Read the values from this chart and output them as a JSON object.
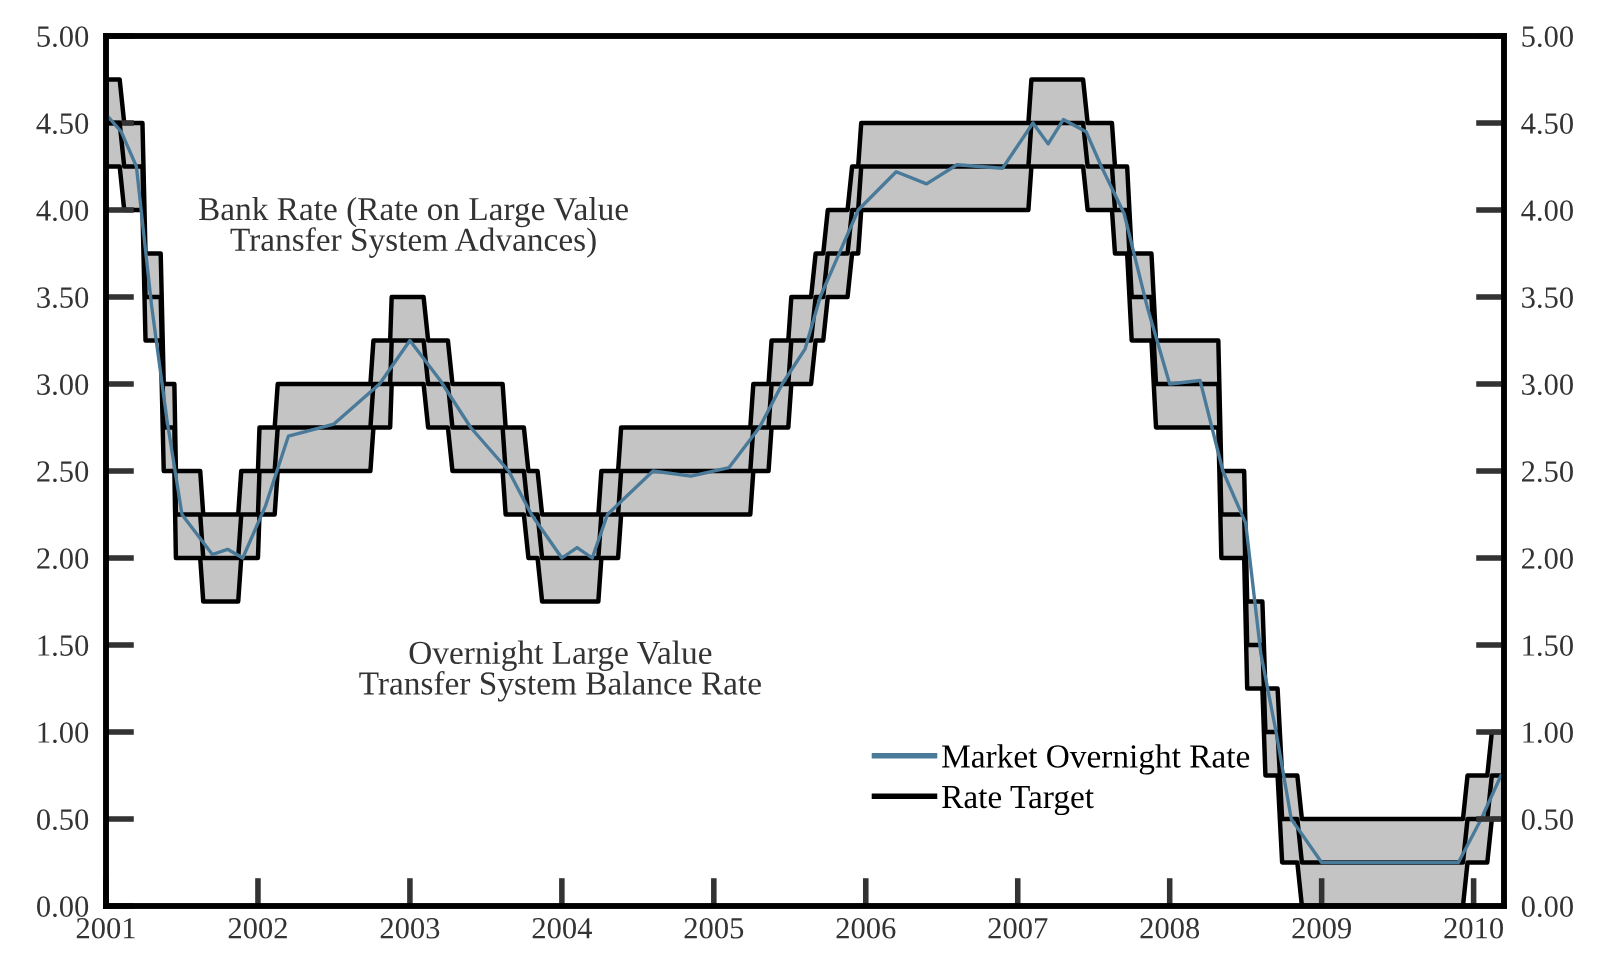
{
  "chart_data": {
    "type": "line",
    "annotations": [
      "Bank Rate (Rate on Large Value\nTransfer System Advances)",
      "Overnight Large Value\nTransfer System Balance Rate"
    ],
    "series": [
      {
        "name": "Market Overnight Rate",
        "color": "#4a7a9a",
        "x": [
          2001.0,
          2001.1,
          2001.2,
          2001.3,
          2001.4,
          2001.5,
          2001.7,
          2001.8,
          2001.9,
          2002.05,
          2002.2,
          2002.5,
          2002.8,
          2003.0,
          2003.2,
          2003.4,
          2003.65,
          2003.8,
          2004.0,
          2004.1,
          2004.2,
          2004.3,
          2004.6,
          2004.85,
          2005.1,
          2005.3,
          2005.45,
          2005.6,
          2005.7,
          2005.8,
          2005.95,
          2006.2,
          2006.4,
          2006.6,
          2006.9,
          2007.1,
          2007.2,
          2007.3,
          2007.45,
          2007.55,
          2007.7,
          2007.85,
          2008.0,
          2008.2,
          2008.35,
          2008.5,
          2008.6,
          2008.7,
          2008.8,
          2009.0,
          2009.9,
          2010.05,
          2010.18
        ],
        "values": [
          4.55,
          4.45,
          4.25,
          3.45,
          2.8,
          2.25,
          2.02,
          2.05,
          2.0,
          2.3,
          2.7,
          2.77,
          3.0,
          3.25,
          3.02,
          2.75,
          2.5,
          2.25,
          2.0,
          2.06,
          2.0,
          2.25,
          2.5,
          2.47,
          2.52,
          2.75,
          3.0,
          3.2,
          3.5,
          3.7,
          4.0,
          4.22,
          4.15,
          4.26,
          4.24,
          4.5,
          4.38,
          4.52,
          4.45,
          4.25,
          3.98,
          3.45,
          3.0,
          3.02,
          2.5,
          2.2,
          1.45,
          1.0,
          0.5,
          0.25,
          0.25,
          0.5,
          0.75
        ]
      },
      {
        "name": "Rate Target",
        "color": "#000000",
        "x": [
          2001.0,
          2001.09,
          2001.12,
          2001.24,
          2001.26,
          2001.36,
          2001.38,
          2001.45,
          2001.46,
          2001.62,
          2001.64,
          2001.87,
          2001.89,
          2002.0,
          2002.01,
          2002.11,
          2002.13,
          2002.74,
          2002.76,
          2002.87,
          2002.88,
          2003.09,
          2003.12,
          2003.25,
          2003.28,
          2003.61,
          2003.63,
          2003.75,
          2003.78,
          2003.84,
          2003.87,
          2004.24,
          2004.26,
          2004.37,
          2004.39,
          2005.24,
          2005.26,
          2005.36,
          2005.38,
          2005.49,
          2005.51,
          2005.64,
          2005.67,
          2005.72,
          2005.75,
          2005.88,
          2005.91,
          2005.95,
          2005.97,
          2007.07,
          2007.09,
          2007.43,
          2007.46,
          2007.62,
          2007.64,
          2007.72,
          2007.75,
          2007.88,
          2007.91,
          2008.32,
          2008.34,
          2008.49,
          2008.51,
          2008.61,
          2008.63,
          2008.71,
          2008.74,
          2008.84,
          2008.87,
          2009.93,
          2009.96,
          2010.09,
          2010.12,
          2010.2
        ],
        "values": [
          4.5,
          4.5,
          4.25,
          4.25,
          3.5,
          3.5,
          2.75,
          2.75,
          2.25,
          2.25,
          2.0,
          2.0,
          2.25,
          2.25,
          2.5,
          2.5,
          2.75,
          2.75,
          3.0,
          3.0,
          3.25,
          3.25,
          3.0,
          3.0,
          2.75,
          2.75,
          2.5,
          2.5,
          2.25,
          2.25,
          2.0,
          2.0,
          2.25,
          2.25,
          2.5,
          2.5,
          2.75,
          2.75,
          3.0,
          3.0,
          3.25,
          3.25,
          3.5,
          3.5,
          3.75,
          3.75,
          4.0,
          4.0,
          4.25,
          4.25,
          4.5,
          4.5,
          4.25,
          4.25,
          4.0,
          4.0,
          3.5,
          3.5,
          3.0,
          3.0,
          2.25,
          2.25,
          1.5,
          1.5,
          1.0,
          1.0,
          0.5,
          0.5,
          0.25,
          0.25,
          0.5,
          0.5,
          0.75,
          0.75
        ],
        "lower": [
          4.25,
          4.25,
          4.0,
          4.0,
          3.25,
          3.25,
          2.5,
          2.5,
          2.0,
          2.0,
          1.75,
          1.75,
          2.0,
          2.0,
          2.25,
          2.25,
          2.5,
          2.5,
          2.75,
          2.75,
          3.0,
          3.0,
          2.75,
          2.75,
          2.5,
          2.5,
          2.25,
          2.25,
          2.0,
          2.0,
          1.75,
          1.75,
          2.0,
          2.0,
          2.25,
          2.25,
          2.5,
          2.5,
          2.75,
          2.75,
          3.0,
          3.0,
          3.25,
          3.25,
          3.5,
          3.5,
          3.75,
          3.75,
          4.0,
          4.0,
          4.25,
          4.25,
          4.0,
          4.0,
          3.75,
          3.75,
          3.25,
          3.25,
          2.75,
          2.75,
          2.0,
          2.0,
          1.25,
          1.25,
          0.75,
          0.75,
          0.25,
          0.25,
          0.0,
          0.0,
          0.25,
          0.25,
          0.5,
          0.5
        ],
        "upper": [
          4.75,
          4.75,
          4.5,
          4.5,
          3.75,
          3.75,
          3.0,
          3.0,
          2.5,
          2.5,
          2.25,
          2.25,
          2.5,
          2.5,
          2.75,
          2.75,
          3.0,
          3.0,
          3.25,
          3.25,
          3.5,
          3.5,
          3.25,
          3.25,
          3.0,
          3.0,
          2.75,
          2.75,
          2.5,
          2.5,
          2.25,
          2.25,
          2.5,
          2.5,
          2.75,
          2.75,
          3.0,
          3.0,
          3.25,
          3.25,
          3.5,
          3.5,
          3.75,
          3.75,
          4.0,
          4.0,
          4.25,
          4.25,
          4.5,
          4.5,
          4.75,
          4.75,
          4.5,
          4.5,
          4.25,
          4.25,
          3.75,
          3.75,
          3.25,
          3.25,
          2.5,
          2.5,
          1.75,
          1.75,
          1.25,
          1.25,
          0.75,
          0.75,
          0.5,
          0.5,
          0.75,
          0.75,
          1.0,
          1.0
        ]
      }
    ],
    "xlim": [
      2001,
      2010.2
    ],
    "xticks": [
      2001,
      2002,
      2003,
      2004,
      2005,
      2006,
      2007,
      2008,
      2009,
      2010
    ],
    "ylim": [
      0,
      5
    ],
    "yticks": [
      {
        "value": 0,
        "label": "0.00"
      },
      {
        "value": 0.5,
        "label": "0.50"
      },
      {
        "value": 1,
        "label": "1.00"
      },
      {
        "value": 1.5,
        "label": "1.50"
      },
      {
        "value": 2,
        "label": "2.00"
      },
      {
        "value": 2.5,
        "label": "2.50"
      },
      {
        "value": 3,
        "label": "3.00"
      },
      {
        "value": 3.5,
        "label": "3.50"
      },
      {
        "value": 4,
        "label": "4.00"
      },
      {
        "value": 4.5,
        "label": "4.50"
      },
      {
        "value": 5,
        "label": "5.00"
      }
    ],
    "y2lim": [
      0,
      5
    ],
    "y2ticks": [
      {
        "value": 0,
        "label": "0.00"
      },
      {
        "value": 0.5,
        "label": "0.50"
      },
      {
        "value": 1,
        "label": "1.00"
      },
      {
        "value": 1.5,
        "label": "1.50"
      },
      {
        "value": 2,
        "label": "2.00"
      },
      {
        "value": 2.5,
        "label": "2.50"
      },
      {
        "value": 3,
        "label": "3.00"
      },
      {
        "value": 3.5,
        "label": "3.50"
      },
      {
        "value": 4,
        "label": "4.00"
      },
      {
        "value": 4.5,
        "label": "4.50"
      },
      {
        "value": 5,
        "label": "5.00"
      }
    ],
    "legend": "bottom right",
    "grid": false,
    "marker": "none",
    "line_style": "solid"
  }
}
